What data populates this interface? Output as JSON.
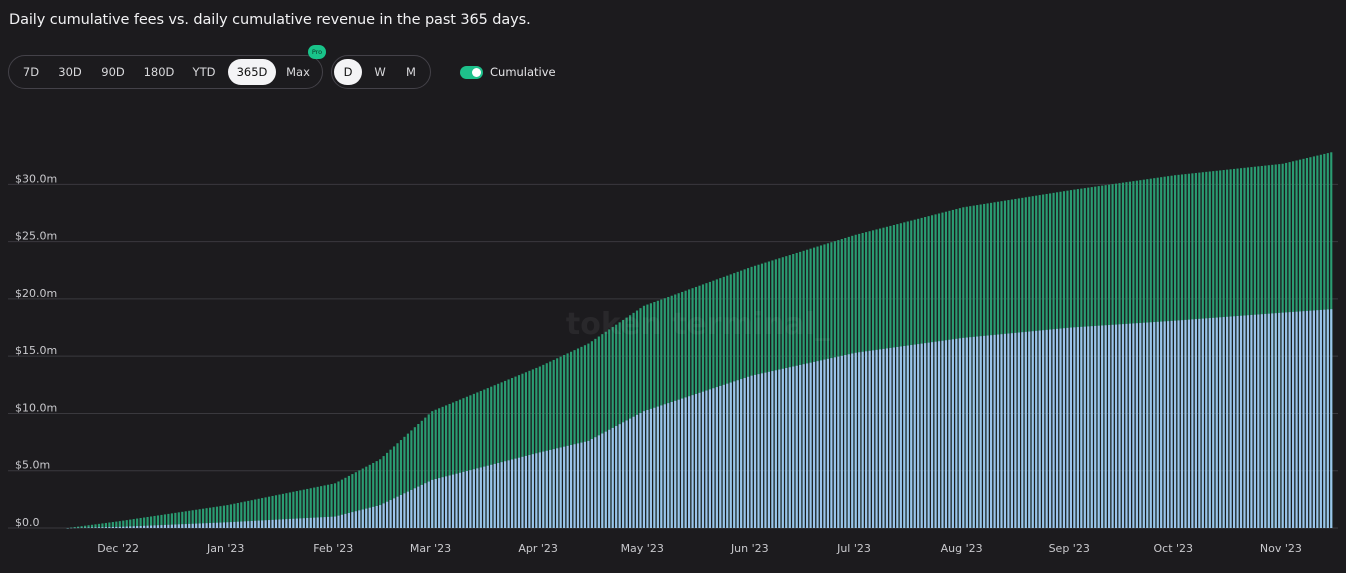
{
  "title": "Daily cumulative fees vs. daily cumulative revenue in the past 365 days.",
  "range_options": [
    {
      "label": "7D",
      "active": false
    },
    {
      "label": "30D",
      "active": false
    },
    {
      "label": "90D",
      "active": false
    },
    {
      "label": "180D",
      "active": false
    },
    {
      "label": "YTD",
      "active": false
    },
    {
      "label": "365D",
      "active": true
    },
    {
      "label": "Max",
      "active": false
    }
  ],
  "pro_badge": "Pro",
  "granularity_options": [
    {
      "label": "D",
      "active": true
    },
    {
      "label": "W",
      "active": false
    },
    {
      "label": "M",
      "active": false
    }
  ],
  "cumulative_toggle": {
    "label": "Cumulative",
    "on": true
  },
  "watermark": "token terminal_",
  "colors": {
    "fees": "#2a9c72",
    "revenue": "#9cc4ec",
    "grid": "#3a393e",
    "background": "#1c1b1e"
  },
  "chart_data": {
    "type": "bar",
    "stacked_overlay": true,
    "unit": "$m",
    "days": 365,
    "ylim": [
      0,
      33
    ],
    "y_ticks": [
      0,
      5,
      10,
      15,
      20,
      25,
      30
    ],
    "y_tick_labels": [
      "$0.0",
      "$5.0m",
      "$10.0m",
      "$15.0m",
      "$20.0m",
      "$25.0m",
      "$30.0m"
    ],
    "x_tick_labels": [
      "Dec '22",
      "Jan '23",
      "Feb '23",
      "Mar '23",
      "Apr '23",
      "May '23",
      "Jun '23",
      "Jul '23",
      "Aug '23",
      "Sep '23",
      "Oct '23",
      "Nov '23"
    ],
    "x_tick_days": [
      15,
      46,
      77,
      105,
      136,
      166,
      197,
      227,
      258,
      289,
      319,
      350
    ],
    "series": [
      {
        "name": "Fees (cumulative)",
        "anchors": [
          [
            0,
            0.0
          ],
          [
            15,
            0.6
          ],
          [
            46,
            2.0
          ],
          [
            77,
            3.9
          ],
          [
            90,
            6.0
          ],
          [
            105,
            10.2
          ],
          [
            136,
            14.1
          ],
          [
            150,
            16.1
          ],
          [
            166,
            19.4
          ],
          [
            197,
            22.8
          ],
          [
            227,
            25.6
          ],
          [
            258,
            28.0
          ],
          [
            289,
            29.5
          ],
          [
            319,
            30.8
          ],
          [
            350,
            31.8
          ],
          [
            364,
            32.8
          ]
        ]
      },
      {
        "name": "Revenue (cumulative)",
        "anchors": [
          [
            0,
            0.0
          ],
          [
            15,
            0.1
          ],
          [
            46,
            0.5
          ],
          [
            77,
            1.0
          ],
          [
            90,
            2.0
          ],
          [
            105,
            4.2
          ],
          [
            136,
            6.6
          ],
          [
            150,
            7.6
          ],
          [
            166,
            10.2
          ],
          [
            197,
            13.3
          ],
          [
            227,
            15.3
          ],
          [
            258,
            16.6
          ],
          [
            289,
            17.5
          ],
          [
            319,
            18.1
          ],
          [
            350,
            18.8
          ],
          [
            364,
            19.1
          ]
        ]
      }
    ]
  }
}
